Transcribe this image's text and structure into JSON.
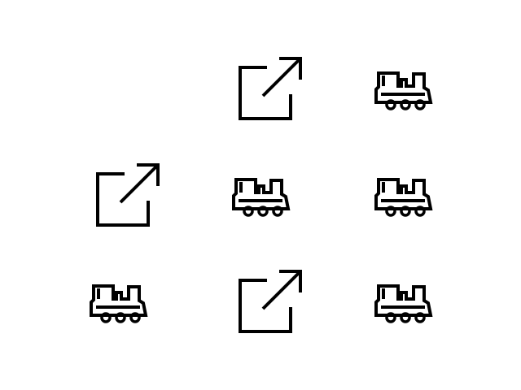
{
  "icon_color": "#000000",
  "background_color": "#ffffff",
  "grid": {
    "rows": [
      [
        "",
        "external-link",
        "train"
      ],
      [
        "external-link",
        "train",
        "train"
      ],
      [
        "train",
        "external-link",
        "train"
      ]
    ]
  }
}
